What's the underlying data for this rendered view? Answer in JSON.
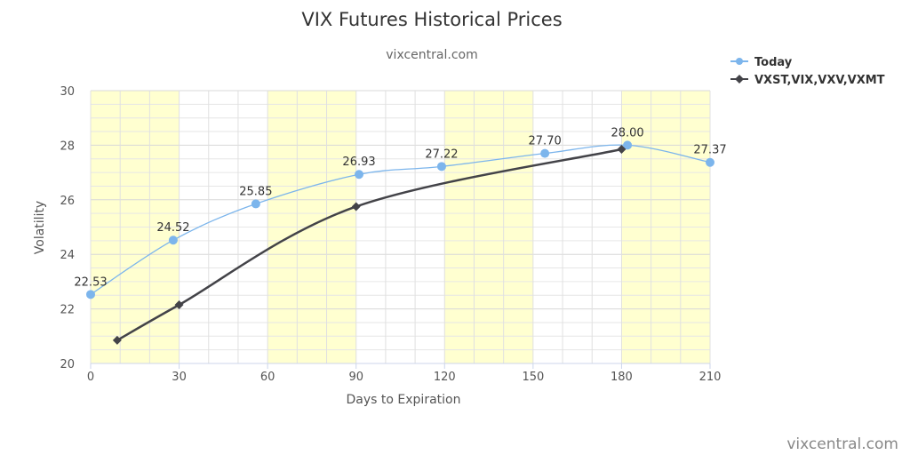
{
  "chart_data": {
    "type": "line",
    "title": "VIX Futures Historical Prices",
    "subtitle": "vixcentral.com",
    "xlabel": "Days to Expiration",
    "ylabel": "Volatility",
    "xlim": [
      0,
      210
    ],
    "ylim": [
      20,
      30
    ],
    "x_ticks": [
      0,
      30,
      60,
      90,
      120,
      150,
      180,
      210
    ],
    "y_ticks": [
      20,
      22,
      24,
      26,
      28,
      30
    ],
    "grid": true,
    "legend_position": "top-right",
    "series": [
      {
        "name": "Today",
        "color": "#7cb5ec",
        "marker": "circle",
        "points": [
          {
            "x": 0,
            "y": 22.53,
            "label": "22.53"
          },
          {
            "x": 28,
            "y": 24.52,
            "label": "24.52"
          },
          {
            "x": 56,
            "y": 25.85,
            "label": "25.85"
          },
          {
            "x": 91,
            "y": 26.93,
            "label": "26.93"
          },
          {
            "x": 119,
            "y": 27.22,
            "label": "27.22"
          },
          {
            "x": 154,
            "y": 27.7,
            "label": "27.70"
          },
          {
            "x": 182,
            "y": 28.0,
            "label": "28.00"
          },
          {
            "x": 210,
            "y": 27.37,
            "label": "27.37"
          }
        ]
      },
      {
        "name": "VXST,VIX,VXV,VXMT",
        "color": "#434348",
        "marker": "diamond",
        "points": [
          {
            "x": 9,
            "y": 20.85
          },
          {
            "x": 30,
            "y": 22.15
          },
          {
            "x": 90,
            "y": 25.75
          },
          {
            "x": 180,
            "y": 27.85
          }
        ]
      }
    ],
    "bands": [
      [
        0,
        30
      ],
      [
        60,
        90
      ],
      [
        120,
        150
      ],
      [
        180,
        210
      ]
    ],
    "band_color": "#ffffd0",
    "credit": "vixcentral.com"
  }
}
